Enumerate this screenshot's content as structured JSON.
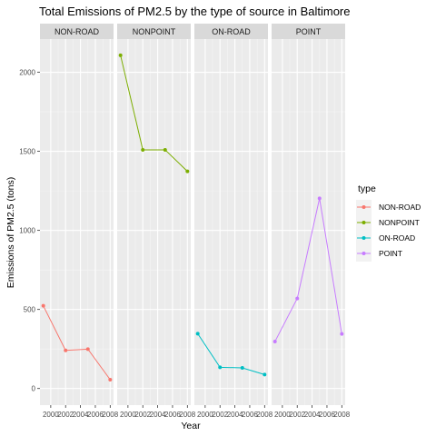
{
  "chart_data": {
    "type": "line",
    "title": "Total Emissions of PM2.5 by the type of source in Baltimore",
    "xlabel": "Year",
    "ylabel": "Emissions of PM2.5 (tons)",
    "x": [
      1999,
      2002,
      2005,
      2008
    ],
    "x_tick_labels": [
      "2000",
      "2002",
      "2004",
      "2006",
      "2008"
    ],
    "x_ticks": [
      2000,
      2002,
      2004,
      2006,
      2008
    ],
    "y_ticks": [
      0,
      500,
      1000,
      1500,
      2000
    ],
    "xlim": [
      1998.55,
      2008.45
    ],
    "ylim": [
      -105,
      2210
    ],
    "facets": [
      "NON-ROAD",
      "NONPOINT",
      "ON-ROAD",
      "POINT"
    ],
    "legend_title": "type",
    "legend_position": "right",
    "grid": true,
    "series": [
      {
        "name": "NON-ROAD",
        "color": "#F8766D",
        "values": [
          522.94,
          240.85,
          248.93,
          55.82
        ]
      },
      {
        "name": "NONPOINT",
        "color": "#7CAE00",
        "values": [
          2107.63,
          1509.5,
          1509.5,
          1373.21
        ]
      },
      {
        "name": "ON-ROAD",
        "color": "#00BFC4",
        "values": [
          346.82,
          134.31,
          130.43,
          88.28
        ]
      },
      {
        "name": "POINT",
        "color": "#C77CFF",
        "values": [
          296.8,
          569.26,
          1202.49,
          344.98
        ]
      }
    ]
  }
}
